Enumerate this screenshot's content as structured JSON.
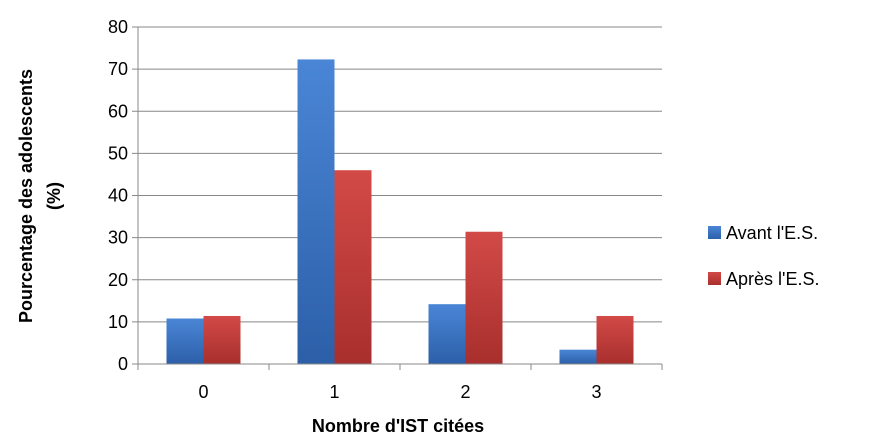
{
  "chart_data": {
    "type": "bar",
    "categories": [
      "0",
      "1",
      "2",
      "3"
    ],
    "series": [
      {
        "name": "Avant l'E.S.",
        "values": [
          10.8,
          72.3,
          14.2,
          3.4
        ],
        "color": "#3b73c5"
      },
      {
        "name": "Après l'E.S.",
        "values": [
          11.4,
          46.0,
          31.4,
          11.4
        ],
        "color": "#c63c3a"
      }
    ],
    "xlabel": "Nombre d'IST citées",
    "ylabel_line1": "Pourcentage des adolescents",
    "ylabel_line2": "(%)",
    "ylim": [
      0,
      80
    ],
    "yticks": [
      "0",
      "10",
      "20",
      "30",
      "40",
      "50",
      "60",
      "70",
      "80"
    ],
    "grid": true,
    "legend_position": "right"
  }
}
